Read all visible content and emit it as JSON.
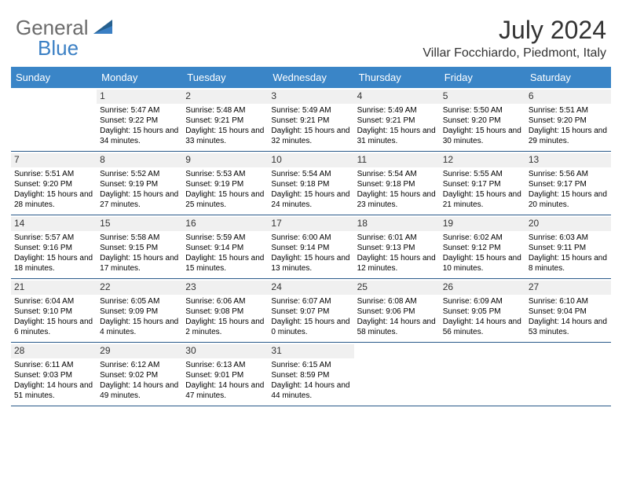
{
  "colors": {
    "header_bg": "#3a85c7",
    "header_text": "#ffffff",
    "daynum_bg": "#f0f0f0",
    "border": "#2a5a8a",
    "logo_gray": "#6b6b6b",
    "logo_blue": "#3a7fc4"
  },
  "logo": {
    "part1": "General",
    "part2": "Blue"
  },
  "title": "July 2024",
  "location": "Villar Focchiardo, Piedmont, Italy",
  "day_names": [
    "Sunday",
    "Monday",
    "Tuesday",
    "Wednesday",
    "Thursday",
    "Friday",
    "Saturday"
  ],
  "weeks": [
    [
      {
        "num": "",
        "sunrise": "",
        "sunset": "",
        "daylight": ""
      },
      {
        "num": "1",
        "sunrise": "Sunrise: 5:47 AM",
        "sunset": "Sunset: 9:22 PM",
        "daylight": "Daylight: 15 hours and 34 minutes."
      },
      {
        "num": "2",
        "sunrise": "Sunrise: 5:48 AM",
        "sunset": "Sunset: 9:21 PM",
        "daylight": "Daylight: 15 hours and 33 minutes."
      },
      {
        "num": "3",
        "sunrise": "Sunrise: 5:49 AM",
        "sunset": "Sunset: 9:21 PM",
        "daylight": "Daylight: 15 hours and 32 minutes."
      },
      {
        "num": "4",
        "sunrise": "Sunrise: 5:49 AM",
        "sunset": "Sunset: 9:21 PM",
        "daylight": "Daylight: 15 hours and 31 minutes."
      },
      {
        "num": "5",
        "sunrise": "Sunrise: 5:50 AM",
        "sunset": "Sunset: 9:20 PM",
        "daylight": "Daylight: 15 hours and 30 minutes."
      },
      {
        "num": "6",
        "sunrise": "Sunrise: 5:51 AM",
        "sunset": "Sunset: 9:20 PM",
        "daylight": "Daylight: 15 hours and 29 minutes."
      }
    ],
    [
      {
        "num": "7",
        "sunrise": "Sunrise: 5:51 AM",
        "sunset": "Sunset: 9:20 PM",
        "daylight": "Daylight: 15 hours and 28 minutes."
      },
      {
        "num": "8",
        "sunrise": "Sunrise: 5:52 AM",
        "sunset": "Sunset: 9:19 PM",
        "daylight": "Daylight: 15 hours and 27 minutes."
      },
      {
        "num": "9",
        "sunrise": "Sunrise: 5:53 AM",
        "sunset": "Sunset: 9:19 PM",
        "daylight": "Daylight: 15 hours and 25 minutes."
      },
      {
        "num": "10",
        "sunrise": "Sunrise: 5:54 AM",
        "sunset": "Sunset: 9:18 PM",
        "daylight": "Daylight: 15 hours and 24 minutes."
      },
      {
        "num": "11",
        "sunrise": "Sunrise: 5:54 AM",
        "sunset": "Sunset: 9:18 PM",
        "daylight": "Daylight: 15 hours and 23 minutes."
      },
      {
        "num": "12",
        "sunrise": "Sunrise: 5:55 AM",
        "sunset": "Sunset: 9:17 PM",
        "daylight": "Daylight: 15 hours and 21 minutes."
      },
      {
        "num": "13",
        "sunrise": "Sunrise: 5:56 AM",
        "sunset": "Sunset: 9:17 PM",
        "daylight": "Daylight: 15 hours and 20 minutes."
      }
    ],
    [
      {
        "num": "14",
        "sunrise": "Sunrise: 5:57 AM",
        "sunset": "Sunset: 9:16 PM",
        "daylight": "Daylight: 15 hours and 18 minutes."
      },
      {
        "num": "15",
        "sunrise": "Sunrise: 5:58 AM",
        "sunset": "Sunset: 9:15 PM",
        "daylight": "Daylight: 15 hours and 17 minutes."
      },
      {
        "num": "16",
        "sunrise": "Sunrise: 5:59 AM",
        "sunset": "Sunset: 9:14 PM",
        "daylight": "Daylight: 15 hours and 15 minutes."
      },
      {
        "num": "17",
        "sunrise": "Sunrise: 6:00 AM",
        "sunset": "Sunset: 9:14 PM",
        "daylight": "Daylight: 15 hours and 13 minutes."
      },
      {
        "num": "18",
        "sunrise": "Sunrise: 6:01 AM",
        "sunset": "Sunset: 9:13 PM",
        "daylight": "Daylight: 15 hours and 12 minutes."
      },
      {
        "num": "19",
        "sunrise": "Sunrise: 6:02 AM",
        "sunset": "Sunset: 9:12 PM",
        "daylight": "Daylight: 15 hours and 10 minutes."
      },
      {
        "num": "20",
        "sunrise": "Sunrise: 6:03 AM",
        "sunset": "Sunset: 9:11 PM",
        "daylight": "Daylight: 15 hours and 8 minutes."
      }
    ],
    [
      {
        "num": "21",
        "sunrise": "Sunrise: 6:04 AM",
        "sunset": "Sunset: 9:10 PM",
        "daylight": "Daylight: 15 hours and 6 minutes."
      },
      {
        "num": "22",
        "sunrise": "Sunrise: 6:05 AM",
        "sunset": "Sunset: 9:09 PM",
        "daylight": "Daylight: 15 hours and 4 minutes."
      },
      {
        "num": "23",
        "sunrise": "Sunrise: 6:06 AM",
        "sunset": "Sunset: 9:08 PM",
        "daylight": "Daylight: 15 hours and 2 minutes."
      },
      {
        "num": "24",
        "sunrise": "Sunrise: 6:07 AM",
        "sunset": "Sunset: 9:07 PM",
        "daylight": "Daylight: 15 hours and 0 minutes."
      },
      {
        "num": "25",
        "sunrise": "Sunrise: 6:08 AM",
        "sunset": "Sunset: 9:06 PM",
        "daylight": "Daylight: 14 hours and 58 minutes."
      },
      {
        "num": "26",
        "sunrise": "Sunrise: 6:09 AM",
        "sunset": "Sunset: 9:05 PM",
        "daylight": "Daylight: 14 hours and 56 minutes."
      },
      {
        "num": "27",
        "sunrise": "Sunrise: 6:10 AM",
        "sunset": "Sunset: 9:04 PM",
        "daylight": "Daylight: 14 hours and 53 minutes."
      }
    ],
    [
      {
        "num": "28",
        "sunrise": "Sunrise: 6:11 AM",
        "sunset": "Sunset: 9:03 PM",
        "daylight": "Daylight: 14 hours and 51 minutes."
      },
      {
        "num": "29",
        "sunrise": "Sunrise: 6:12 AM",
        "sunset": "Sunset: 9:02 PM",
        "daylight": "Daylight: 14 hours and 49 minutes."
      },
      {
        "num": "30",
        "sunrise": "Sunrise: 6:13 AM",
        "sunset": "Sunset: 9:01 PM",
        "daylight": "Daylight: 14 hours and 47 minutes."
      },
      {
        "num": "31",
        "sunrise": "Sunrise: 6:15 AM",
        "sunset": "Sunset: 8:59 PM",
        "daylight": "Daylight: 14 hours and 44 minutes."
      },
      {
        "num": "",
        "sunrise": "",
        "sunset": "",
        "daylight": ""
      },
      {
        "num": "",
        "sunrise": "",
        "sunset": "",
        "daylight": ""
      },
      {
        "num": "",
        "sunrise": "",
        "sunset": "",
        "daylight": ""
      }
    ]
  ]
}
